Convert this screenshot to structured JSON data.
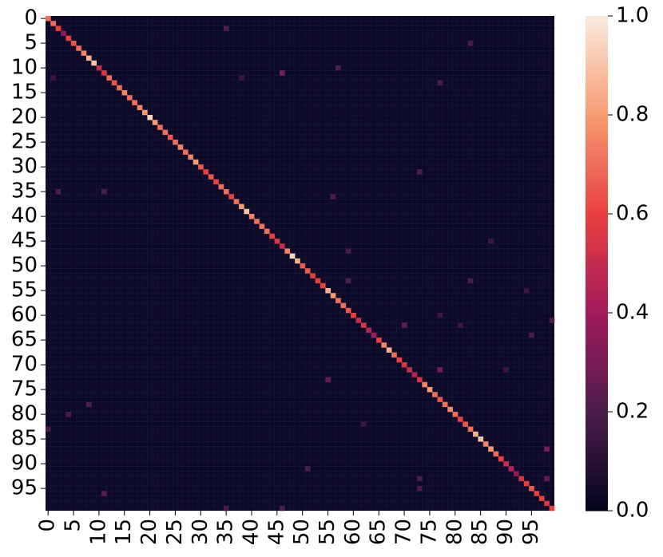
{
  "chart_data": {
    "type": "heatmap",
    "colormap": "rocket",
    "n": 100,
    "xticks": [
      0,
      5,
      10,
      15,
      20,
      25,
      30,
      35,
      40,
      45,
      50,
      55,
      60,
      65,
      70,
      75,
      80,
      85,
      90,
      95
    ],
    "yticks": [
      0,
      5,
      10,
      15,
      20,
      25,
      30,
      35,
      40,
      45,
      50,
      55,
      60,
      65,
      70,
      75,
      80,
      85,
      90,
      95
    ],
    "zlim": [
      0,
      1
    ],
    "zticks": [
      {
        "value": 0,
        "label": "0.0"
      },
      0.2,
      0.4,
      0.6,
      0.8,
      {
        "value": 1,
        "label": "1.0"
      }
    ],
    "diagonal": [
      0.7,
      0.7,
      0.6,
      0.35,
      0.6,
      0.65,
      0.7,
      0.75,
      0.85,
      0.9,
      0.5,
      0.55,
      0.7,
      0.65,
      0.7,
      0.75,
      0.7,
      0.7,
      0.75,
      0.8,
      0.95,
      0.8,
      0.7,
      0.7,
      0.65,
      0.7,
      0.75,
      0.7,
      0.75,
      0.8,
      0.65,
      0.6,
      0.65,
      0.6,
      0.7,
      0.7,
      0.6,
      0.7,
      0.8,
      0.9,
      0.75,
      0.7,
      0.7,
      0.7,
      0.6,
      0.55,
      0.5,
      0.75,
      0.95,
      0.85,
      0.65,
      0.65,
      0.6,
      0.6,
      0.6,
      0.85,
      0.8,
      0.7,
      0.7,
      0.65,
      0.6,
      0.5,
      0.55,
      0.45,
      0.4,
      0.6,
      0.75,
      0.85,
      0.7,
      0.6,
      0.55,
      0.5,
      0.45,
      0.55,
      0.75,
      0.8,
      0.7,
      0.65,
      0.7,
      0.75,
      0.7,
      0.6,
      0.65,
      0.7,
      0.85,
      0.9,
      0.75,
      0.8,
      0.7,
      0.6,
      0.5,
      0.45,
      0.35,
      0.55,
      0.6,
      0.65,
      0.6,
      0.6,
      0.55,
      0.6
    ],
    "cells": [
      [
        47,
        59,
        0.2
      ],
      [
        53,
        59,
        0.2
      ],
      [
        62,
        70,
        0.25
      ],
      [
        71,
        77,
        0.3
      ],
      [
        87,
        98,
        0.3
      ],
      [
        61,
        99,
        0.2
      ],
      [
        96,
        11,
        0.25
      ],
      [
        91,
        51,
        0.2
      ],
      [
        73,
        55,
        0.25
      ],
      [
        31,
        73,
        0.2
      ],
      [
        36,
        56,
        0.2
      ],
      [
        53,
        83,
        0.2
      ],
      [
        71,
        90,
        0.15
      ],
      [
        62,
        81,
        0.15
      ],
      [
        78,
        8,
        0.2
      ],
      [
        80,
        4,
        0.2
      ],
      [
        2,
        35,
        0.2
      ],
      [
        5,
        83,
        0.2
      ],
      [
        13,
        77,
        0.2
      ],
      [
        10,
        57,
        0.2
      ],
      [
        12,
        38,
        0.15
      ],
      [
        35,
        11,
        0.2
      ],
      [
        35,
        2,
        0.2
      ],
      [
        11,
        46,
        0.3
      ],
      [
        12,
        1,
        0.15
      ],
      [
        82,
        62,
        0.15
      ],
      [
        93,
        98,
        0.25
      ],
      [
        93,
        73,
        0.2
      ],
      [
        95,
        73,
        0.2
      ],
      [
        99,
        35,
        0.2
      ],
      [
        99,
        46,
        0.2
      ],
      [
        64,
        95,
        0.2
      ],
      [
        55,
        94,
        0.15
      ],
      [
        83,
        0,
        0.2
      ],
      [
        45,
        87,
        0.15
      ],
      [
        60,
        77,
        0.15
      ]
    ]
  }
}
